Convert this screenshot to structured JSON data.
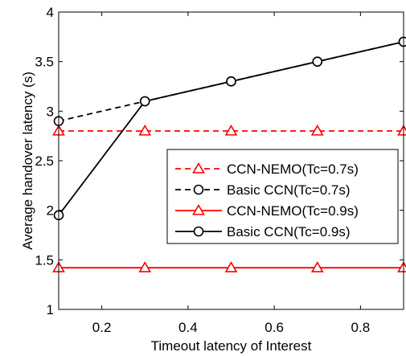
{
  "chart_data": {
    "type": "line",
    "xlabel": "Timeout latency of Interest",
    "ylabel": "Average handover latency (s)",
    "xlim": [
      0.1,
      0.9
    ],
    "ylim": [
      1,
      4
    ],
    "xticks": [
      0.2,
      0.4,
      0.6,
      0.8
    ],
    "xtick_labels": [
      "0.2",
      "0.4",
      "0.6",
      "0.8"
    ],
    "yticks": [
      1,
      1.5,
      2,
      2.5,
      3,
      3.5,
      4
    ],
    "ytick_labels": [
      "1",
      "1.5",
      "2",
      "2.5",
      "3",
      "3.5",
      "4"
    ],
    "grid": false,
    "legend_position": "center-right",
    "x": [
      0.1,
      0.3,
      0.5,
      0.7,
      0.9
    ],
    "series": [
      {
        "name": "CCN-NEMO(Tc=0.7s)",
        "values": [
          2.8,
          2.8,
          2.8,
          2.8,
          2.8
        ],
        "color": "#ff0000",
        "dash": "dashed",
        "marker": "triangle"
      },
      {
        "name": "Basic CCN(Tc=0.7s)",
        "values": [
          2.9,
          3.1,
          3.3,
          3.5,
          3.7
        ],
        "color": "#000000",
        "dash": "dashed",
        "marker": "circle"
      },
      {
        "name": "CCN-NEMO(Tc=0.9s)",
        "values": [
          1.42,
          1.42,
          1.42,
          1.42,
          1.42
        ],
        "color": "#ff0000",
        "dash": "solid",
        "marker": "triangle"
      },
      {
        "name": "Basic CCN(Tc=0.9s)",
        "values": [
          1.95,
          3.1,
          3.3,
          3.5,
          3.7
        ],
        "color": "#000000",
        "dash": "solid",
        "marker": "circle"
      }
    ]
  }
}
